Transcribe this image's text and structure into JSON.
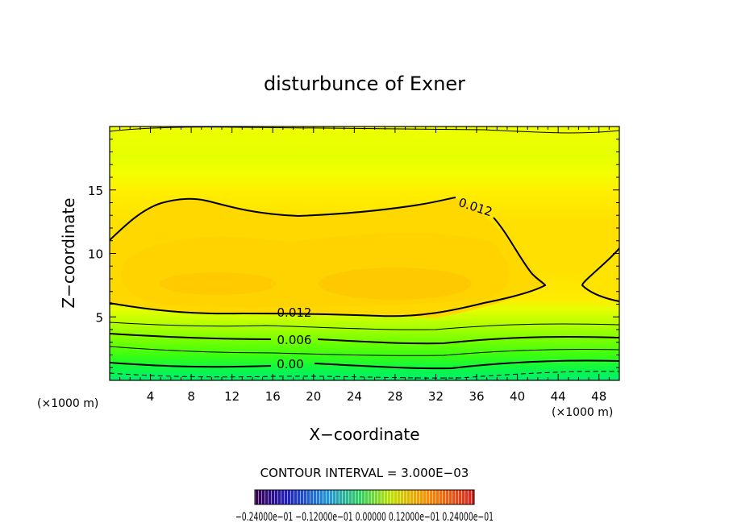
{
  "chart_data": {
    "type": "contour",
    "title": "disturbunce of Exner",
    "xlabel": "X−coordinate",
    "ylabel": "Z−coordinate",
    "x_unit": "(×1000 m)",
    "x_unit_right": "(×1000 m)",
    "xlim": [
      0,
      50
    ],
    "ylim": [
      0,
      20
    ],
    "x_ticks": [
      4,
      8,
      12,
      16,
      20,
      24,
      28,
      32,
      36,
      40,
      44,
      48
    ],
    "y_ticks": [
      5,
      10,
      15
    ],
    "x_tick_labels": [
      "4",
      "8",
      "12",
      "16",
      "20",
      "24",
      "28",
      "32",
      "36",
      "40",
      "44",
      "48"
    ],
    "y_tick_labels": [
      "5",
      "10",
      "15"
    ],
    "contour_labels": [
      {
        "text": "0.012",
        "x": 34.6,
        "z": 13.9,
        "angle": 18
      },
      {
        "text": "0.012",
        "x": 17.0,
        "z": 5.4,
        "angle": 0
      },
      {
        "text": "0.006",
        "x": 17.0,
        "z": 3.4,
        "angle": 0
      },
      {
        "text": "0.00",
        "x": 17.0,
        "z": 1.5,
        "angle": 0
      }
    ],
    "contour_interval_text": "CONTOUR INTERVAL = 3.000E−03",
    "colorbar": {
      "labels_text": "−0.24000e−01 −0.12000e−01  0.00000  0.12000e−01  0.24000e−01",
      "range": [
        -0.024,
        0.024
      ]
    },
    "colors": {
      "yellow_light": "#f2ff00",
      "yellow": "#fff200",
      "gold": "#ffd200",
      "orange": "#ffc000",
      "green": "#00f060"
    }
  }
}
